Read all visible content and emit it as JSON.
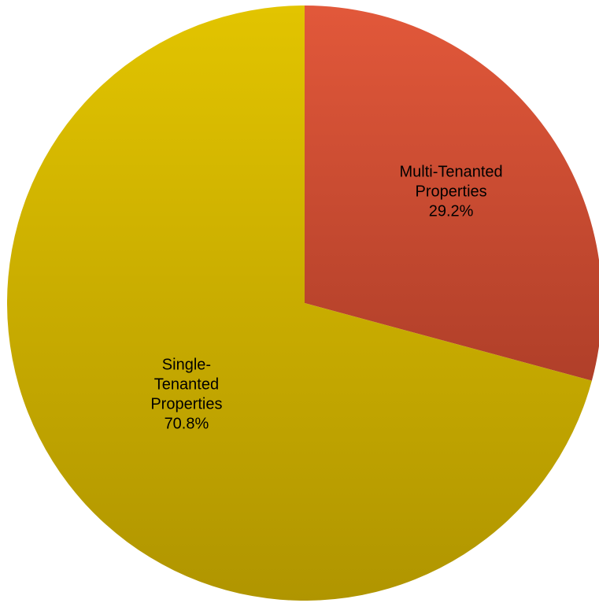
{
  "chart_data": {
    "type": "pie",
    "start_angle_deg": 0,
    "direction": "clockwise",
    "slices": [
      {
        "label_lines": [
          "Multi-Tenanted",
          "Properties",
          "29.2%"
        ],
        "value": 29.2,
        "color": "#c8452d",
        "gradient": [
          "#e2583a",
          "#b03f29"
        ]
      },
      {
        "label_lines": [
          "Single-",
          "Tenanted",
          "Properties",
          "70.8%"
        ],
        "value": 70.8,
        "color": "#b09600",
        "gradient": [
          "#e2c400",
          "#b09500"
        ]
      }
    ]
  }
}
